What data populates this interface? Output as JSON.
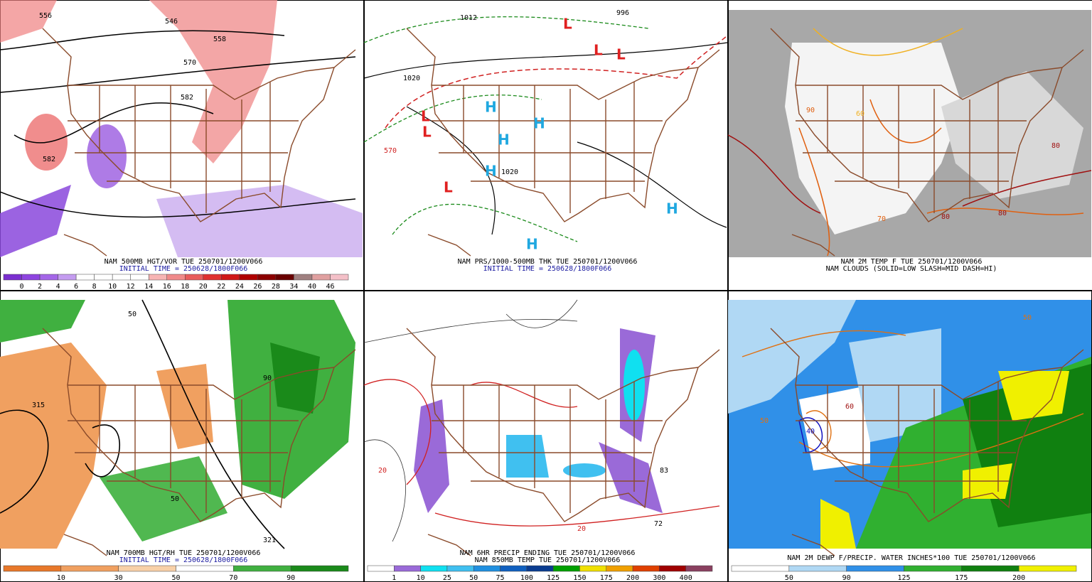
{
  "panels": [
    {
      "caption": [
        "NAM 500MB HGT/VOR TUE 250701/1200V066",
        "INITIAL TIME = 250628/1800F066"
      ],
      "caption_colors": [
        "#000000",
        "#1a1aa0"
      ],
      "colorbar": {
        "labels": [
          "0",
          "2",
          "4",
          "6",
          "8",
          "10",
          "12",
          "14",
          "16",
          "18",
          "20",
          "22",
          "24",
          "26",
          "28",
          "34",
          "40",
          "46"
        ],
        "colors": [
          "#7b2fd0",
          "#8e44e0",
          "#a466e8",
          "#c49cf0",
          "#ffffff",
          "#ffffff",
          "#ffffff",
          "#ffffff",
          "#f7b4b4",
          "#f08a8a",
          "#e85c5c",
          "#e03030",
          "#d01818",
          "#b00000",
          "#8c0000",
          "#6a0000",
          "#a08080",
          "#e0a0a0",
          "#f4c0c8"
        ]
      },
      "map_labels": [
        "556",
        "546",
        "558",
        "570",
        "582",
        "582"
      ]
    },
    {
      "caption": [
        "NAM PRS/1000-500MB THK TUE 250701/1200V066",
        "INITIAL TIME = 250628/1800F066"
      ],
      "caption_colors": [
        "#000000",
        "#1a1aa0"
      ],
      "map_labels": [
        "L",
        "L",
        "L",
        "L",
        "L",
        "L",
        "H",
        "H",
        "H",
        "H",
        "H",
        "H",
        "1012",
        "1020",
        "1020",
        "996",
        "570"
      ]
    },
    {
      "caption": [
        "NAM 2M TEMP F TUE 250701/1200V066",
        "NAM CLOUDS (SOLID=LOW SLASH=MID DASH=HI)"
      ],
      "caption_colors": [
        "#000000",
        "#000000"
      ],
      "map_labels": [
        "80",
        "80",
        "70",
        "80",
        "60",
        "90"
      ]
    },
    {
      "caption": [
        "NAM 700MB HGT/RH TUE 250701/1200V066",
        "INITIAL TIME = 250628/1800F066"
      ],
      "caption_colors": [
        "#000000",
        "#1a1aa0"
      ],
      "colorbar": {
        "labels": [
          "10",
          "30",
          "50",
          "70",
          "90"
        ],
        "colors": [
          "#e8782a",
          "#f0a060",
          "#f8d0a8",
          "#ffffff",
          "#40b040",
          "#1a8a1a"
        ]
      },
      "map_labels": [
        "315",
        "50",
        "90",
        "50",
        "321"
      ]
    },
    {
      "caption": [
        "NAM 6HR PRECIP ENDING TUE 250701/1200V066",
        "NAM 850MB TEMP TUE 250701/1200V066"
      ],
      "caption_colors": [
        "#000000",
        "#000000"
      ],
      "colorbar": {
        "labels": [
          "1",
          "10",
          "25",
          "50",
          "75",
          "100",
          "125",
          "150",
          "175",
          "200",
          "300",
          "400"
        ],
        "colors": [
          "#ffffff",
          "#9a6ad8",
          "#10e0f0",
          "#40c0f0",
          "#2090e0",
          "#1060c0",
          "#0a3c90",
          "#00a000",
          "#f0e000",
          "#f0a000",
          "#e04000",
          "#a00000",
          "#8a4060"
        ]
      },
      "map_labels": [
        "20",
        "20",
        "72",
        "83"
      ]
    },
    {
      "caption": [
        "NAM 2M DEWP F/PRECIP. WATER INCHES*100 TUE 250701/1200V066"
      ],
      "caption_colors": [
        "#000000"
      ],
      "colorbar": {
        "labels": [
          "50",
          "90",
          "125",
          "175",
          "200"
        ],
        "colors": [
          "#ffffff",
          "#b0d8f4",
          "#3090e8",
          "#30b030",
          "#108010",
          "#f0f000"
        ]
      },
      "map_labels": [
        "50",
        "50",
        "40",
        "60"
      ]
    }
  ]
}
